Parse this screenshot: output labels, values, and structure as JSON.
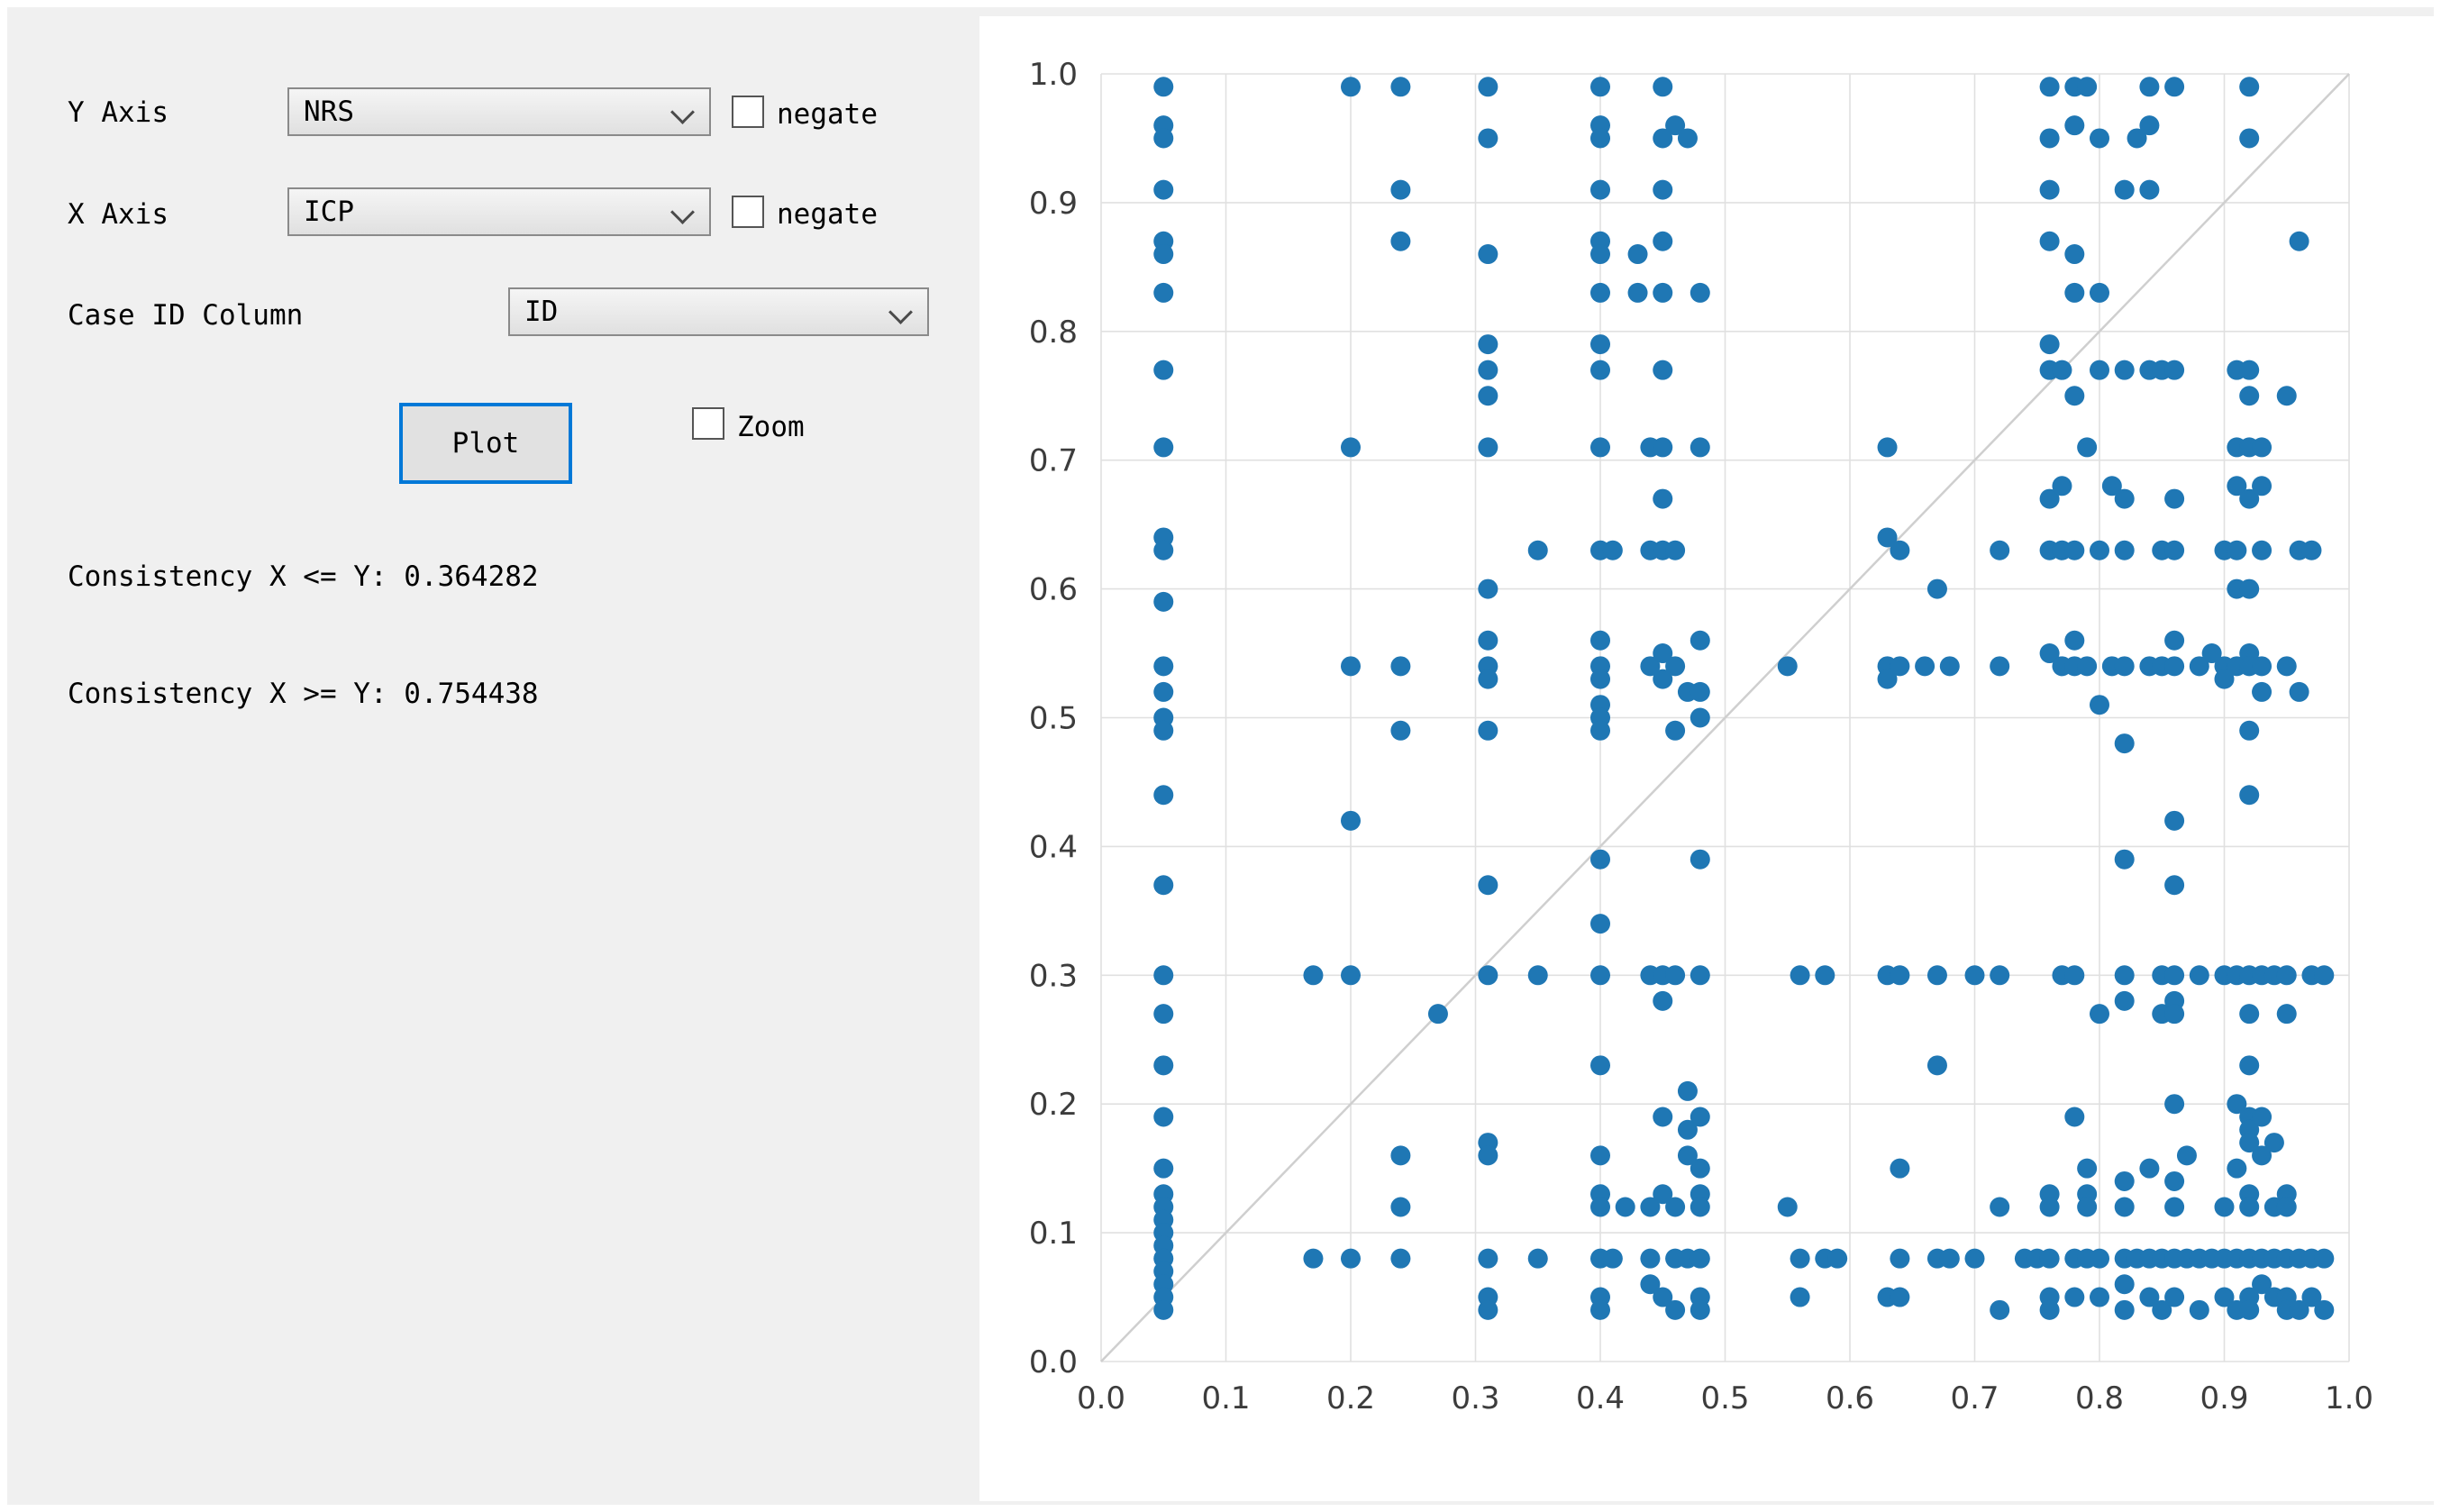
{
  "controls": {
    "y_axis": {
      "label": "Y Axis",
      "value": "NRS",
      "negate_label": "negate",
      "negate_checked": false
    },
    "x_axis": {
      "label": "X Axis",
      "value": "ICP",
      "negate_label": "negate",
      "negate_checked": false
    },
    "case_id": {
      "label": "Case ID Column",
      "value": "ID"
    },
    "plot_button_label": "Plot",
    "zoom": {
      "label": "Zoom",
      "checked": false
    },
    "consistency_le": "Consistency X <= Y: 0.364282",
    "consistency_ge": "Consistency X >= Y: 0.754438"
  },
  "chart_data": {
    "type": "scatter",
    "title": "",
    "xlabel": "",
    "ylabel": "",
    "xlim": [
      0,
      1
    ],
    "ylim": [
      0,
      1
    ],
    "xticks": [
      0,
      0.1,
      0.2,
      0.3,
      0.4,
      0.5,
      0.6,
      0.7,
      0.8,
      0.9,
      1.0
    ],
    "yticks": [
      0,
      0.1,
      0.2,
      0.3,
      0.4,
      0.5,
      0.6,
      0.7,
      0.8,
      0.9,
      1.0
    ],
    "grid": true,
    "diagonal_line": true,
    "legend": false,
    "colors": {
      "marker": "#1f77b4",
      "grid": "#e0e0e0",
      "diagonal": "#cfcfcf",
      "tick_label": "#3c3c3c",
      "accent_button_border": "#0078d7"
    },
    "points": [
      [
        0.05,
        0.99
      ],
      [
        0.05,
        0.96
      ],
      [
        0.05,
        0.95
      ],
      [
        0.05,
        0.91
      ],
      [
        0.05,
        0.87
      ],
      [
        0.05,
        0.86
      ],
      [
        0.05,
        0.83
      ],
      [
        0.05,
        0.77
      ],
      [
        0.05,
        0.71
      ],
      [
        0.05,
        0.64
      ],
      [
        0.05,
        0.63
      ],
      [
        0.05,
        0.59
      ],
      [
        0.05,
        0.54
      ],
      [
        0.05,
        0.52
      ],
      [
        0.05,
        0.5
      ],
      [
        0.05,
        0.49
      ],
      [
        0.05,
        0.44
      ],
      [
        0.05,
        0.37
      ],
      [
        0.05,
        0.3
      ],
      [
        0.05,
        0.27
      ],
      [
        0.05,
        0.23
      ],
      [
        0.05,
        0.19
      ],
      [
        0.05,
        0.15
      ],
      [
        0.05,
        0.13
      ],
      [
        0.05,
        0.12
      ],
      [
        0.05,
        0.11
      ],
      [
        0.05,
        0.1
      ],
      [
        0.05,
        0.09
      ],
      [
        0.05,
        0.08
      ],
      [
        0.05,
        0.07
      ],
      [
        0.05,
        0.06
      ],
      [
        0.05,
        0.05
      ],
      [
        0.05,
        0.04
      ],
      [
        0.2,
        0.99
      ],
      [
        0.24,
        0.99
      ],
      [
        0.31,
        0.99
      ],
      [
        0.4,
        0.99
      ],
      [
        0.45,
        0.99
      ],
      [
        0.76,
        0.99
      ],
      [
        0.78,
        0.99
      ],
      [
        0.79,
        0.99
      ],
      [
        0.84,
        0.99
      ],
      [
        0.86,
        0.99
      ],
      [
        0.92,
        0.99
      ],
      [
        0.31,
        0.95
      ],
      [
        0.4,
        0.96
      ],
      [
        0.4,
        0.95
      ],
      [
        0.45,
        0.95
      ],
      [
        0.46,
        0.96
      ],
      [
        0.47,
        0.95
      ],
      [
        0.76,
        0.95
      ],
      [
        0.78,
        0.96
      ],
      [
        0.8,
        0.95
      ],
      [
        0.83,
        0.95
      ],
      [
        0.84,
        0.96
      ],
      [
        0.92,
        0.95
      ],
      [
        0.24,
        0.91
      ],
      [
        0.4,
        0.91
      ],
      [
        0.45,
        0.91
      ],
      [
        0.76,
        0.91
      ],
      [
        0.82,
        0.91
      ],
      [
        0.84,
        0.91
      ],
      [
        0.24,
        0.87
      ],
      [
        0.31,
        0.86
      ],
      [
        0.4,
        0.87
      ],
      [
        0.4,
        0.86
      ],
      [
        0.43,
        0.86
      ],
      [
        0.45,
        0.87
      ],
      [
        0.76,
        0.87
      ],
      [
        0.78,
        0.86
      ],
      [
        0.96,
        0.87
      ],
      [
        0.4,
        0.83
      ],
      [
        0.43,
        0.83
      ],
      [
        0.45,
        0.83
      ],
      [
        0.48,
        0.83
      ],
      [
        0.78,
        0.83
      ],
      [
        0.8,
        0.83
      ],
      [
        0.31,
        0.79
      ],
      [
        0.31,
        0.77
      ],
      [
        0.31,
        0.75
      ],
      [
        0.4,
        0.79
      ],
      [
        0.4,
        0.77
      ],
      [
        0.45,
        0.77
      ],
      [
        0.76,
        0.79
      ],
      [
        0.76,
        0.77
      ],
      [
        0.77,
        0.77
      ],
      [
        0.78,
        0.75
      ],
      [
        0.8,
        0.77
      ],
      [
        0.82,
        0.77
      ],
      [
        0.84,
        0.77
      ],
      [
        0.85,
        0.77
      ],
      [
        0.86,
        0.77
      ],
      [
        0.91,
        0.77
      ],
      [
        0.92,
        0.77
      ],
      [
        0.92,
        0.75
      ],
      [
        0.95,
        0.75
      ],
      [
        0.2,
        0.71
      ],
      [
        0.31,
        0.71
      ],
      [
        0.4,
        0.71
      ],
      [
        0.44,
        0.71
      ],
      [
        0.45,
        0.71
      ],
      [
        0.48,
        0.71
      ],
      [
        0.63,
        0.71
      ],
      [
        0.79,
        0.71
      ],
      [
        0.91,
        0.71
      ],
      [
        0.92,
        0.71
      ],
      [
        0.93,
        0.71
      ],
      [
        0.45,
        0.67
      ],
      [
        0.76,
        0.67
      ],
      [
        0.77,
        0.68
      ],
      [
        0.81,
        0.68
      ],
      [
        0.82,
        0.67
      ],
      [
        0.86,
        0.67
      ],
      [
        0.91,
        0.68
      ],
      [
        0.92,
        0.67
      ],
      [
        0.93,
        0.68
      ],
      [
        0.35,
        0.63
      ],
      [
        0.4,
        0.63
      ],
      [
        0.41,
        0.63
      ],
      [
        0.44,
        0.63
      ],
      [
        0.45,
        0.63
      ],
      [
        0.46,
        0.63
      ],
      [
        0.63,
        0.64
      ],
      [
        0.64,
        0.63
      ],
      [
        0.72,
        0.63
      ],
      [
        0.76,
        0.63
      ],
      [
        0.77,
        0.63
      ],
      [
        0.78,
        0.63
      ],
      [
        0.8,
        0.63
      ],
      [
        0.82,
        0.63
      ],
      [
        0.85,
        0.63
      ],
      [
        0.86,
        0.63
      ],
      [
        0.9,
        0.63
      ],
      [
        0.91,
        0.63
      ],
      [
        0.93,
        0.63
      ],
      [
        0.96,
        0.63
      ],
      [
        0.97,
        0.63
      ],
      [
        0.31,
        0.6
      ],
      [
        0.67,
        0.6
      ],
      [
        0.91,
        0.6
      ],
      [
        0.92,
        0.6
      ],
      [
        0.2,
        0.54
      ],
      [
        0.24,
        0.54
      ],
      [
        0.24,
        0.49
      ],
      [
        0.31,
        0.56
      ],
      [
        0.31,
        0.54
      ],
      [
        0.31,
        0.53
      ],
      [
        0.31,
        0.49
      ],
      [
        0.4,
        0.56
      ],
      [
        0.4,
        0.54
      ],
      [
        0.4,
        0.53
      ],
      [
        0.4,
        0.51
      ],
      [
        0.4,
        0.5
      ],
      [
        0.4,
        0.49
      ],
      [
        0.44,
        0.54
      ],
      [
        0.45,
        0.55
      ],
      [
        0.45,
        0.53
      ],
      [
        0.46,
        0.54
      ],
      [
        0.46,
        0.49
      ],
      [
        0.47,
        0.52
      ],
      [
        0.48,
        0.56
      ],
      [
        0.48,
        0.52
      ],
      [
        0.48,
        0.5
      ],
      [
        0.55,
        0.54
      ],
      [
        0.63,
        0.54
      ],
      [
        0.63,
        0.53
      ],
      [
        0.64,
        0.54
      ],
      [
        0.66,
        0.54
      ],
      [
        0.68,
        0.54
      ],
      [
        0.72,
        0.54
      ],
      [
        0.76,
        0.55
      ],
      [
        0.77,
        0.54
      ],
      [
        0.78,
        0.56
      ],
      [
        0.78,
        0.54
      ],
      [
        0.79,
        0.54
      ],
      [
        0.8,
        0.51
      ],
      [
        0.81,
        0.54
      ],
      [
        0.82,
        0.54
      ],
      [
        0.84,
        0.54
      ],
      [
        0.85,
        0.54
      ],
      [
        0.86,
        0.56
      ],
      [
        0.86,
        0.54
      ],
      [
        0.88,
        0.54
      ],
      [
        0.89,
        0.55
      ],
      [
        0.9,
        0.54
      ],
      [
        0.9,
        0.53
      ],
      [
        0.91,
        0.54
      ],
      [
        0.92,
        0.55
      ],
      [
        0.92,
        0.54
      ],
      [
        0.93,
        0.54
      ],
      [
        0.93,
        0.52
      ],
      [
        0.95,
        0.54
      ],
      [
        0.96,
        0.52
      ],
      [
        0.82,
        0.48
      ],
      [
        0.92,
        0.49
      ],
      [
        0.92,
        0.44
      ],
      [
        0.2,
        0.42
      ],
      [
        0.86,
        0.42
      ],
      [
        0.4,
        0.39
      ],
      [
        0.48,
        0.39
      ],
      [
        0.82,
        0.39
      ],
      [
        0.31,
        0.37
      ],
      [
        0.86,
        0.37
      ],
      [
        0.4,
        0.34
      ],
      [
        0.17,
        0.3
      ],
      [
        0.2,
        0.3
      ],
      [
        0.31,
        0.3
      ],
      [
        0.35,
        0.3
      ],
      [
        0.4,
        0.3
      ],
      [
        0.44,
        0.3
      ],
      [
        0.45,
        0.3
      ],
      [
        0.46,
        0.3
      ],
      [
        0.48,
        0.3
      ],
      [
        0.56,
        0.3
      ],
      [
        0.58,
        0.3
      ],
      [
        0.63,
        0.3
      ],
      [
        0.64,
        0.3
      ],
      [
        0.67,
        0.3
      ],
      [
        0.7,
        0.3
      ],
      [
        0.72,
        0.3
      ],
      [
        0.77,
        0.3
      ],
      [
        0.78,
        0.3
      ],
      [
        0.82,
        0.3
      ],
      [
        0.85,
        0.3
      ],
      [
        0.86,
        0.3
      ],
      [
        0.88,
        0.3
      ],
      [
        0.9,
        0.3
      ],
      [
        0.91,
        0.3
      ],
      [
        0.92,
        0.3
      ],
      [
        0.93,
        0.3
      ],
      [
        0.94,
        0.3
      ],
      [
        0.95,
        0.3
      ],
      [
        0.97,
        0.3
      ],
      [
        0.98,
        0.3
      ],
      [
        0.27,
        0.27
      ],
      [
        0.45,
        0.28
      ],
      [
        0.8,
        0.27
      ],
      [
        0.82,
        0.28
      ],
      [
        0.85,
        0.27
      ],
      [
        0.86,
        0.28
      ],
      [
        0.86,
        0.27
      ],
      [
        0.92,
        0.27
      ],
      [
        0.95,
        0.27
      ],
      [
        0.4,
        0.23
      ],
      [
        0.67,
        0.23
      ],
      [
        0.92,
        0.23
      ],
      [
        0.45,
        0.19
      ],
      [
        0.47,
        0.21
      ],
      [
        0.48,
        0.19
      ],
      [
        0.78,
        0.19
      ],
      [
        0.86,
        0.2
      ],
      [
        0.91,
        0.2
      ],
      [
        0.92,
        0.19
      ],
      [
        0.93,
        0.19
      ],
      [
        0.24,
        0.16
      ],
      [
        0.31,
        0.17
      ],
      [
        0.31,
        0.16
      ],
      [
        0.4,
        0.16
      ],
      [
        0.47,
        0.18
      ],
      [
        0.47,
        0.16
      ],
      [
        0.48,
        0.15
      ],
      [
        0.64,
        0.15
      ],
      [
        0.79,
        0.15
      ],
      [
        0.82,
        0.14
      ],
      [
        0.84,
        0.15
      ],
      [
        0.86,
        0.14
      ],
      [
        0.87,
        0.16
      ],
      [
        0.91,
        0.15
      ],
      [
        0.92,
        0.18
      ],
      [
        0.92,
        0.17
      ],
      [
        0.93,
        0.16
      ],
      [
        0.94,
        0.17
      ],
      [
        0.24,
        0.12
      ],
      [
        0.4,
        0.13
      ],
      [
        0.4,
        0.12
      ],
      [
        0.42,
        0.12
      ],
      [
        0.44,
        0.12
      ],
      [
        0.45,
        0.13
      ],
      [
        0.46,
        0.12
      ],
      [
        0.48,
        0.13
      ],
      [
        0.48,
        0.12
      ],
      [
        0.55,
        0.12
      ],
      [
        0.72,
        0.12
      ],
      [
        0.76,
        0.13
      ],
      [
        0.76,
        0.12
      ],
      [
        0.79,
        0.13
      ],
      [
        0.79,
        0.12
      ],
      [
        0.82,
        0.12
      ],
      [
        0.86,
        0.12
      ],
      [
        0.9,
        0.12
      ],
      [
        0.92,
        0.13
      ],
      [
        0.92,
        0.12
      ],
      [
        0.94,
        0.12
      ],
      [
        0.95,
        0.13
      ],
      [
        0.95,
        0.12
      ],
      [
        0.17,
        0.08
      ],
      [
        0.2,
        0.08
      ],
      [
        0.24,
        0.08
      ],
      [
        0.31,
        0.08
      ],
      [
        0.35,
        0.08
      ],
      [
        0.4,
        0.08
      ],
      [
        0.41,
        0.08
      ],
      [
        0.44,
        0.08
      ],
      [
        0.46,
        0.08
      ],
      [
        0.47,
        0.08
      ],
      [
        0.48,
        0.08
      ],
      [
        0.56,
        0.08
      ],
      [
        0.58,
        0.08
      ],
      [
        0.59,
        0.08
      ],
      [
        0.64,
        0.08
      ],
      [
        0.67,
        0.08
      ],
      [
        0.68,
        0.08
      ],
      [
        0.7,
        0.08
      ],
      [
        0.74,
        0.08
      ],
      [
        0.75,
        0.08
      ],
      [
        0.76,
        0.08
      ],
      [
        0.78,
        0.08
      ],
      [
        0.79,
        0.08
      ],
      [
        0.8,
        0.08
      ],
      [
        0.82,
        0.08
      ],
      [
        0.83,
        0.08
      ],
      [
        0.84,
        0.08
      ],
      [
        0.85,
        0.08
      ],
      [
        0.86,
        0.08
      ],
      [
        0.87,
        0.08
      ],
      [
        0.88,
        0.08
      ],
      [
        0.89,
        0.08
      ],
      [
        0.9,
        0.08
      ],
      [
        0.91,
        0.08
      ],
      [
        0.92,
        0.08
      ],
      [
        0.93,
        0.08
      ],
      [
        0.94,
        0.08
      ],
      [
        0.95,
        0.08
      ],
      [
        0.96,
        0.08
      ],
      [
        0.97,
        0.08
      ],
      [
        0.98,
        0.08
      ],
      [
        0.31,
        0.05
      ],
      [
        0.31,
        0.04
      ],
      [
        0.4,
        0.05
      ],
      [
        0.4,
        0.04
      ],
      [
        0.44,
        0.06
      ],
      [
        0.45,
        0.05
      ],
      [
        0.46,
        0.04
      ],
      [
        0.48,
        0.05
      ],
      [
        0.48,
        0.04
      ],
      [
        0.56,
        0.05
      ],
      [
        0.63,
        0.05
      ],
      [
        0.64,
        0.05
      ],
      [
        0.72,
        0.04
      ],
      [
        0.76,
        0.05
      ],
      [
        0.76,
        0.04
      ],
      [
        0.78,
        0.05
      ],
      [
        0.8,
        0.05
      ],
      [
        0.82,
        0.06
      ],
      [
        0.82,
        0.04
      ],
      [
        0.84,
        0.05
      ],
      [
        0.85,
        0.04
      ],
      [
        0.86,
        0.05
      ],
      [
        0.88,
        0.04
      ],
      [
        0.9,
        0.05
      ],
      [
        0.91,
        0.04
      ],
      [
        0.92,
        0.05
      ],
      [
        0.92,
        0.04
      ],
      [
        0.93,
        0.06
      ],
      [
        0.94,
        0.05
      ],
      [
        0.95,
        0.05
      ],
      [
        0.95,
        0.04
      ],
      [
        0.96,
        0.04
      ],
      [
        0.97,
        0.05
      ],
      [
        0.98,
        0.04
      ]
    ]
  }
}
